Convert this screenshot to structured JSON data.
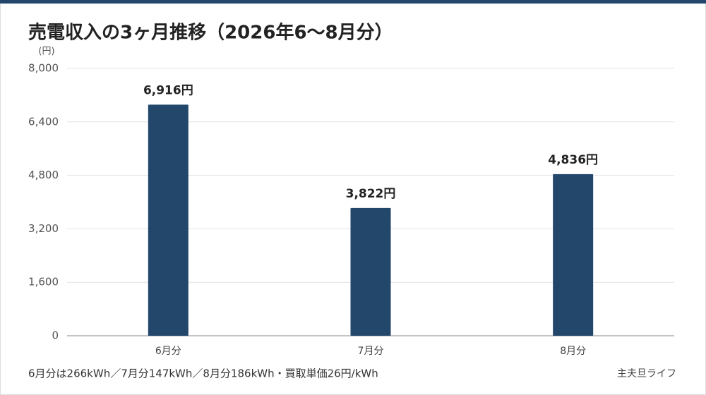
{
  "chart_data": {
    "type": "bar",
    "title": "売電収入の3ヶ月推移（2026年6〜8月分）",
    "y_label": "(円)",
    "categories": [
      "6月分",
      "7月分",
      "8月分"
    ],
    "values": [
      6916,
      3822,
      4836
    ],
    "value_labels": [
      "6,916円",
      "3,822円",
      "4,836円"
    ],
    "color": "#22476b",
    "ylim": [
      0,
      8000
    ],
    "yticks": [
      0,
      {
        "value": 1600,
        "label": "1,600"
      },
      {
        "value": 3200,
        "label": "3,200"
      },
      {
        "value": 4800,
        "label": "4,800"
      },
      {
        "value": 6400,
        "label": "6,400"
      },
      {
        "value": 8000,
        "label": "8,000"
      }
    ],
    "grid": true,
    "note": "6月分は266kWh／7月分147kWh／8月分186kWh・買取単価26円/kWh",
    "source": "主夫旦ライフ"
  }
}
